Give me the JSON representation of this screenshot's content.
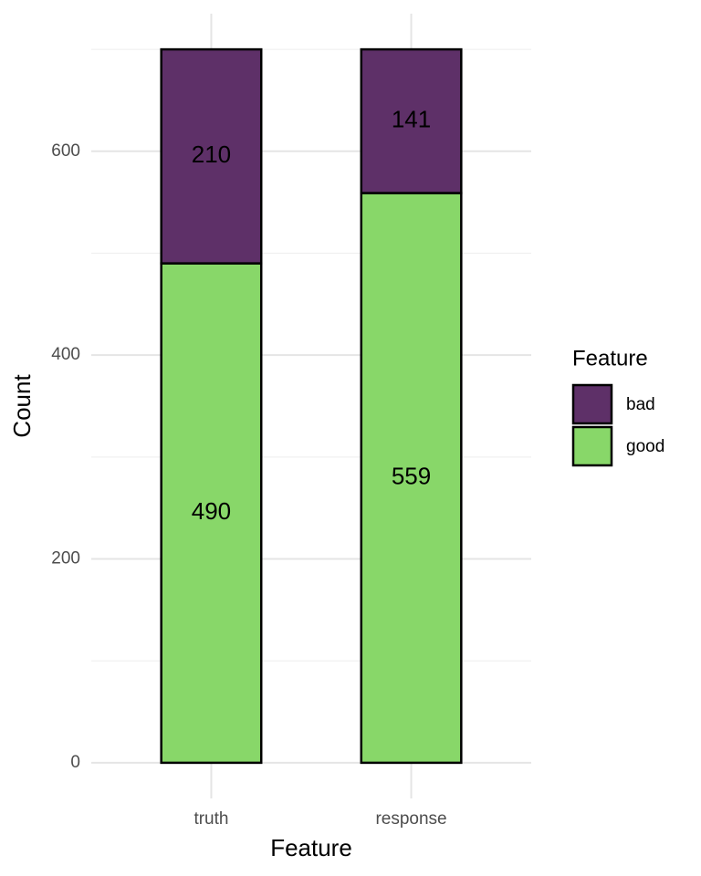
{
  "chart_data": {
    "type": "stacked-bar",
    "x_label": "Feature",
    "y_label": "Count",
    "legend_title": "Feature",
    "categories": [
      "truth",
      "response"
    ],
    "series": [
      {
        "name": "bad",
        "color": "#5e3068",
        "values": [
          210,
          141
        ]
      },
      {
        "name": "good",
        "color": "#88d769",
        "values": [
          490,
          559
        ]
      }
    ],
    "ylim": [
      -35,
      735
    ],
    "yticks": [
      0,
      200,
      400,
      600
    ],
    "minor_yticks": [
      100,
      300,
      500,
      700
    ],
    "grid": true,
    "legend": "right"
  }
}
